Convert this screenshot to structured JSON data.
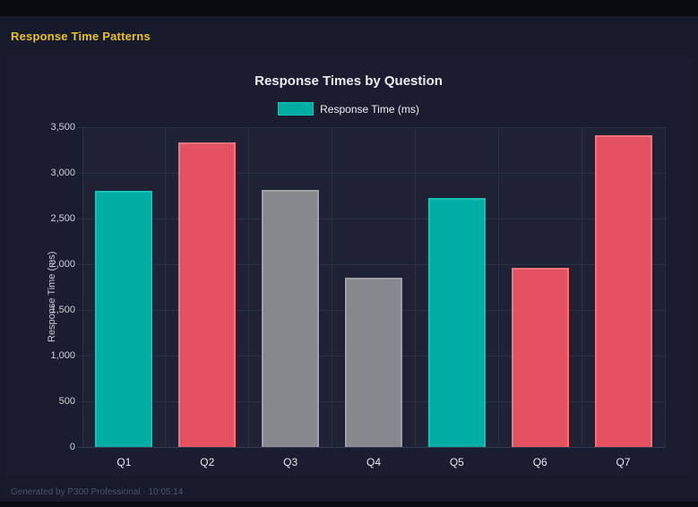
{
  "header": {
    "title": "Response Time Patterns"
  },
  "footer": {
    "text": "Generated by P300 Professional - 10:05:14"
  },
  "chart_data": {
    "type": "bar",
    "title": "Response Times by Question",
    "legend_label": "Response Time (ms)",
    "legend_position": "top",
    "xlabel": "",
    "ylabel": "Response Time (ms)",
    "categories": [
      "Q1",
      "Q2",
      "Q3",
      "Q4",
      "Q5",
      "Q6",
      "Q7"
    ],
    "values": [
      2800,
      3330,
      2810,
      1850,
      2730,
      1960,
      3410
    ],
    "bar_colors": [
      "teal",
      "red",
      "gray",
      "gray",
      "teal",
      "red",
      "red"
    ],
    "palette": {
      "teal": "#00ada3",
      "red": "#e4525f",
      "gray": "#87888d"
    },
    "palette_border": {
      "teal": "#12c2b4",
      "red": "#f1737c",
      "gray": "#9fa0a6"
    },
    "ylim": [
      0,
      3500
    ],
    "ytick_step": 500,
    "ytick_labels": [
      "0",
      "500",
      "1,000",
      "1,500",
      "2,000",
      "2,500",
      "3,000",
      "3,500"
    ],
    "grid": true
  },
  "theme": {
    "page_bg": "#161a2b",
    "panel_bg": "#191d2f",
    "plot_bg": "#1e2234",
    "grid_color": "#2a2f44",
    "accent_yellow": "#e8c41c",
    "title_color": "#e9ecf1"
  }
}
